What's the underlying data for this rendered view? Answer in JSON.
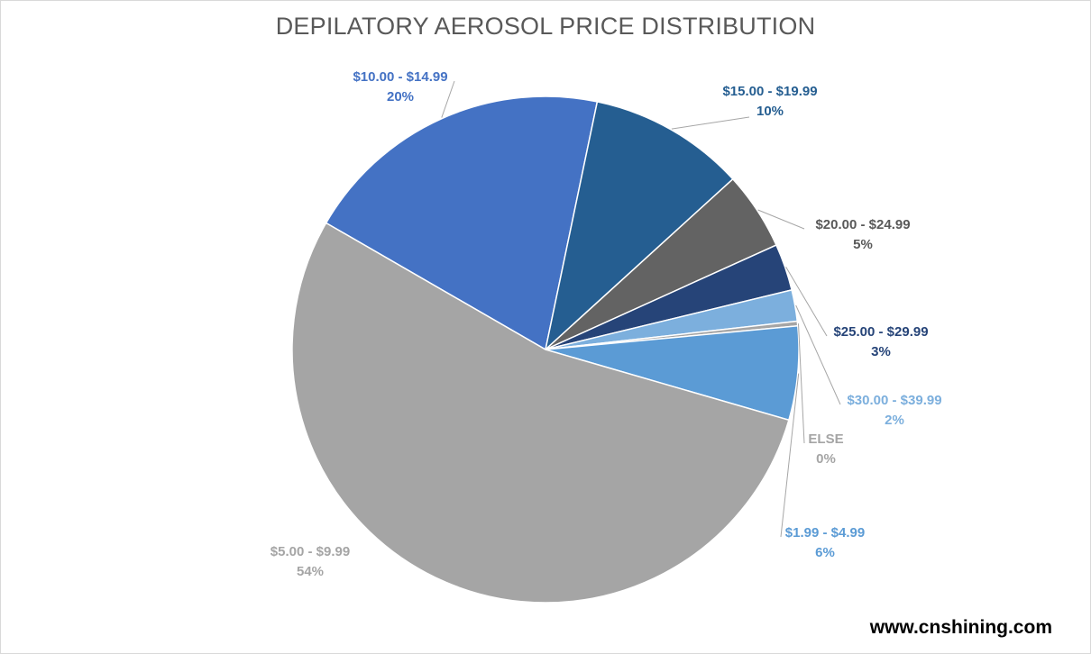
{
  "chart_data": {
    "type": "pie",
    "title": "DEPILATORY AEROSOL PRICE DISTRIBUTION",
    "categories": [
      "$10.00 - $14.99",
      "$15.00 - $19.99",
      "$20.00 - $24.99",
      "$25.00 - $29.99",
      "$30.00 - $39.99",
      "ELSE",
      "$1.99 - $4.99",
      "$5.00 - $9.99"
    ],
    "values": [
      20,
      10,
      5,
      3,
      2,
      0,
      6,
      54
    ],
    "value_labels": [
      "20%",
      "10%",
      "5%",
      "3%",
      "2%",
      "0%",
      "6%",
      "54%"
    ],
    "colors": [
      "#4472C4",
      "#255E91",
      "#636363",
      "#264478",
      "#7CAFDD",
      "#A5A5A5",
      "#5B9BD5",
      "#A5A5A5"
    ],
    "else_share": 0.3,
    "legend": "none"
  },
  "watermark": "www.cnshining.com"
}
